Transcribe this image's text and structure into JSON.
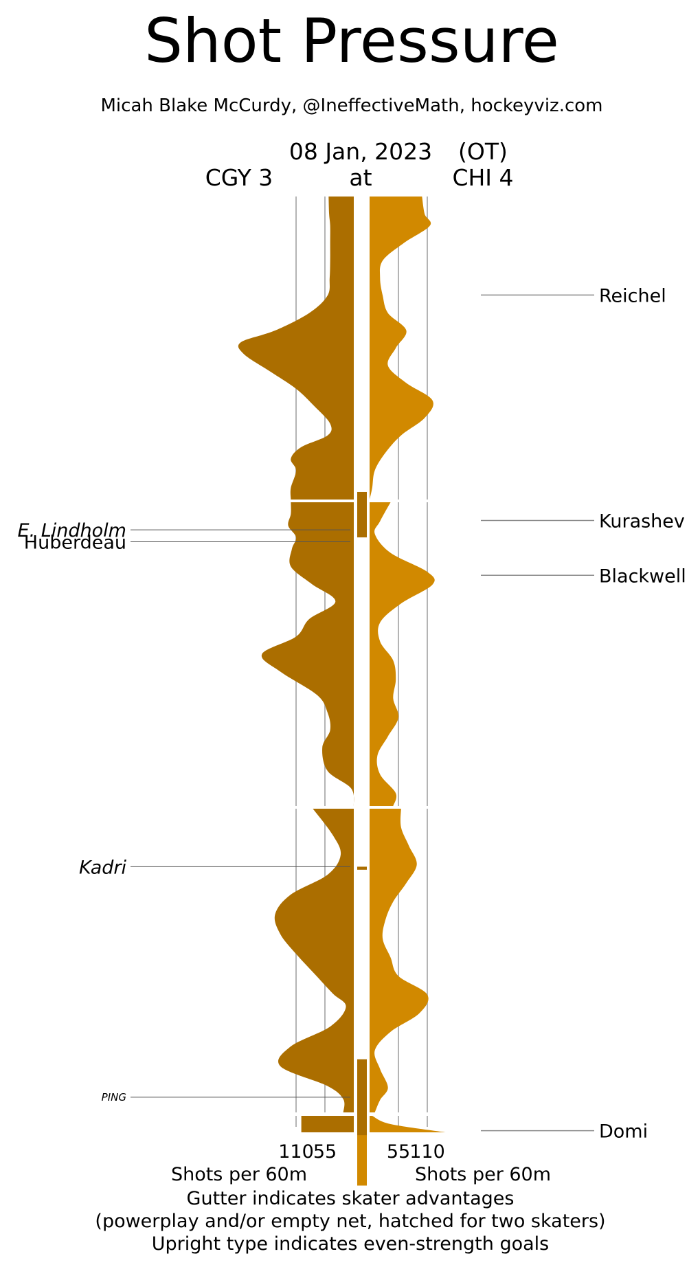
{
  "title": "Shot Pressure",
  "subtitle": "Micah Blake McCurdy, @IneffectiveMath, hockeyviz.com",
  "header": {
    "date": "08 Jan, 2023",
    "ot": "(OT)",
    "away": "CGY 3",
    "at": "at",
    "home": "CHI 4"
  },
  "footer": {
    "away_axis": "Shots per 60m",
    "home_axis": "Shots per 60m",
    "note1": "Gutter indicates skater advantages",
    "note2": "(powerplay and/or empty net, hatched for two skaters)",
    "note3": "Upright type indicates even-strength goals"
  },
  "colors": {
    "away": "#ab6e00",
    "home": "#d18900",
    "grid": "#b4b4b4"
  },
  "chart_data": {
    "type": "area",
    "orientation": "vertical-time",
    "periods": 4,
    "x_ticks": [
      110,
      55
    ],
    "series": [
      {
        "name": "CGY",
        "side": "left",
        "period_profiles": [
          [
            [
              0,
              48
            ],
            [
              3,
              47
            ],
            [
              5,
              45
            ],
            [
              8,
              45
            ],
            [
              11,
              45
            ],
            [
              14,
              46
            ],
            [
              17,
              50
            ],
            [
              20,
              85
            ],
            [
              23,
              150
            ],
            [
              25,
              215
            ],
            [
              27,
              210
            ],
            [
              30,
              160
            ],
            [
              33,
              110
            ],
            [
              36,
              75
            ],
            [
              39,
              45
            ],
            [
              41,
              50
            ],
            [
              43,
              100
            ],
            [
              45,
              120
            ],
            [
              47,
              110
            ],
            [
              50,
              120
            ],
            [
              52,
              120
            ]
          ],
          [
            [
              0,
              120
            ],
            [
              2,
              120
            ],
            [
              4,
              125
            ],
            [
              6,
              110
            ],
            [
              8,
              118
            ],
            [
              11,
              120
            ],
            [
              14,
              80
            ],
            [
              17,
              35
            ],
            [
              20,
              85
            ],
            [
              23,
              110
            ],
            [
              26,
              175
            ],
            [
              29,
              140
            ],
            [
              33,
              70
            ],
            [
              36,
              50
            ],
            [
              39,
              45
            ],
            [
              42,
              60
            ],
            [
              46,
              50
            ],
            [
              49,
              5
            ],
            [
              52,
              0
            ]
          ],
          [
            [
              0,
              78
            ],
            [
              4,
              40
            ],
            [
              7,
              25
            ],
            [
              10,
              50
            ],
            [
              13,
              120
            ],
            [
              16,
              150
            ],
            [
              19,
              140
            ],
            [
              22,
              110
            ],
            [
              25,
              75
            ],
            [
              28,
              40
            ],
            [
              30,
              15
            ],
            [
              33,
              45
            ],
            [
              36,
              120
            ],
            [
              39,
              140
            ],
            [
              42,
              50
            ],
            [
              44,
              20
            ],
            [
              46,
              20
            ]
          ],
          [
            [
              0,
              100
            ],
            [
              3,
              100
            ],
            [
              6,
              100
            ]
          ]
        ]
      },
      {
        "name": "CHI",
        "side": "right",
        "period_profiles": [
          [
            [
              0,
              100
            ],
            [
              3,
              105
            ],
            [
              5,
              115
            ],
            [
              8,
              65
            ],
            [
              11,
              25
            ],
            [
              14,
              20
            ],
            [
              17,
              25
            ],
            [
              20,
              35
            ],
            [
              23,
              70
            ],
            [
              26,
              50
            ],
            [
              29,
              35
            ],
            [
              32,
              70
            ],
            [
              35,
              120
            ],
            [
              38,
              105
            ],
            [
              41,
              60
            ],
            [
              44,
              30
            ],
            [
              47,
              10
            ],
            [
              50,
              5
            ],
            [
              52,
              0
            ]
          ],
          [
            [
              0,
              40
            ],
            [
              3,
              20
            ],
            [
              5,
              10
            ],
            [
              8,
              40
            ],
            [
              11,
              110
            ],
            [
              13,
              120
            ],
            [
              16,
              60
            ],
            [
              19,
              20
            ],
            [
              22,
              20
            ],
            [
              25,
              45
            ],
            [
              28,
              50
            ],
            [
              31,
              45
            ],
            [
              34,
              55
            ],
            [
              37,
              35
            ],
            [
              40,
              15
            ],
            [
              43,
              20
            ],
            [
              46,
              50
            ],
            [
              48,
              45
            ]
          ],
          [
            [
              0,
              60
            ],
            [
              3,
              60
            ],
            [
              6,
              75
            ],
            [
              9,
              90
            ],
            [
              12,
              70
            ],
            [
              15,
              45
            ],
            [
              18,
              30
            ],
            [
              21,
              25
            ],
            [
              24,
              40
            ],
            [
              27,
              55
            ],
            [
              30,
              110
            ],
            [
              33,
              95
            ],
            [
              36,
              40
            ],
            [
              39,
              10
            ],
            [
              42,
              20
            ],
            [
              45,
              35
            ],
            [
              47,
              20
            ],
            [
              49,
              10
            ]
          ],
          [
            [
              0,
              5
            ],
            [
              3,
              40
            ],
            [
              6,
              145
            ]
          ]
        ]
      }
    ],
    "gutter_marks": [
      {
        "side": "away",
        "period": 1,
        "minutes": [
          19.5,
          22.5
        ]
      },
      {
        "side": "away",
        "period": 2,
        "minutes": [
          24,
          24.2
        ]
      },
      {
        "side": "home",
        "period": 2,
        "minutes": [
          40,
          45
        ]
      },
      {
        "side": "away",
        "period": 3,
        "minutes": [
          16.5,
          21.5
        ]
      }
    ],
    "labels": [
      {
        "side": "left",
        "name": "E. Lindholm",
        "style": "italic",
        "period": 1,
        "minute": 22
      },
      {
        "side": "left",
        "name": "Huberdeau",
        "style": "upright",
        "period": 2,
        "minute": 2.6
      },
      {
        "side": "left",
        "name": "Kadri",
        "style": "italic",
        "period": 2,
        "minute": 24
      },
      {
        "side": "left",
        "name": "PING",
        "style": "italic-small",
        "period": 3,
        "minute": 19
      },
      {
        "side": "right",
        "name": "Reichel",
        "style": "upright",
        "period": 1,
        "minute": 6.5
      },
      {
        "side": "right",
        "name": "Blackwell",
        "style": "upright",
        "period": 1,
        "minute": 25
      },
      {
        "side": "right",
        "name": "Kurashev",
        "style": "upright",
        "period": 2,
        "minute": 1.2
      },
      {
        "side": "right",
        "name": "Domi",
        "style": "upright",
        "period": 4,
        "minute": 4.5
      }
    ]
  }
}
